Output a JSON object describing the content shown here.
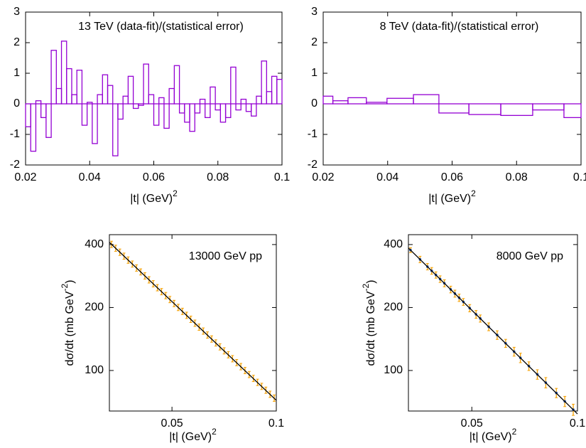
{
  "chart_data": [
    {
      "type": "histogram",
      "title": "13 TeV  (data-fit)/(statistical error)",
      "xlabel": {
        "text": "|t| (GeV)",
        "sup": "2"
      },
      "bins": [
        0.02,
        0.0216,
        0.0232,
        0.0248,
        0.0264,
        0.028,
        0.0296,
        0.0312,
        0.0328,
        0.0344,
        0.036,
        0.0376,
        0.0392,
        0.0408,
        0.0424,
        0.044,
        0.0456,
        0.0472,
        0.0488,
        0.0504,
        0.052,
        0.0536,
        0.0552,
        0.0568,
        0.0584,
        0.06,
        0.0616,
        0.0632,
        0.0648,
        0.0664,
        0.068,
        0.0696,
        0.0712,
        0.0728,
        0.0744,
        0.076,
        0.0776,
        0.0792,
        0.0808,
        0.0824,
        0.084,
        0.0856,
        0.0872,
        0.0888,
        0.0904,
        0.092,
        0.0936,
        0.0952,
        0.0968,
        0.0984,
        0.1
      ],
      "values": [
        -0.75,
        -1.55,
        0.1,
        -0.45,
        -1.1,
        1.75,
        0.5,
        2.05,
        1.15,
        0.3,
        1.1,
        -0.7,
        0.05,
        -1.3,
        0.3,
        0.95,
        0.6,
        -1.7,
        -0.5,
        0.25,
        0.9,
        -0.15,
        -0.05,
        1.3,
        0.3,
        -0.7,
        0.2,
        -0.8,
        0.5,
        1.25,
        -0.3,
        -0.6,
        -0.9,
        -0.3,
        0.15,
        -0.45,
        0.55,
        -0.2,
        -0.6,
        -0.45,
        1.2,
        -0.2,
        0.15,
        -0.25,
        -0.4,
        0.25,
        1.4,
        0.4,
        0.9,
        0.8
      ],
      "color": "#9400d3",
      "xlim": [
        0.02,
        0.1
      ],
      "xticks": [
        0.02,
        0.04,
        0.06,
        0.08,
        0.1
      ],
      "ylim": [
        -2,
        3
      ],
      "yticks": [
        -2,
        -1,
        0,
        1,
        2,
        3
      ]
    },
    {
      "type": "histogram",
      "title": "8 TeV  (data-fit)/(statistical error)",
      "xlabel": {
        "text": "|t| (GeV)",
        "sup": "2"
      },
      "bins": [
        0.02,
        0.023,
        0.0277,
        0.0334,
        0.0398,
        0.048,
        0.0559,
        0.0652,
        0.0751,
        0.085,
        0.0947,
        0.1
      ],
      "values": [
        0.25,
        0.1,
        0.2,
        0.05,
        0.18,
        0.3,
        -0.3,
        -0.35,
        -0.38,
        -0.2,
        -0.45
      ],
      "color": "#9400d3",
      "xlim": [
        0.02,
        0.1
      ],
      "xticks": [
        0.02,
        0.04,
        0.06,
        0.08,
        0.1
      ],
      "ylim": [
        -2,
        3
      ],
      "yticks": [
        -2,
        -1,
        0,
        1,
        2,
        3
      ]
    },
    {
      "type": "errorbar",
      "annotation": "13000 GeV pp",
      "xlabel": {
        "text": "|t| (GeV)",
        "sup": "2"
      },
      "ylabel": {
        "text": "dσ/dt (mb GeV",
        "sup": "-2",
        "end": ")"
      },
      "log_y": true,
      "xlim": [
        0.02,
        0.1
      ],
      "xticks": [
        0.05,
        0.1
      ],
      "ylim": [
        64,
        446
      ],
      "yticks": [
        100,
        200,
        400
      ],
      "series": [
        {
          "kind": "errorbar",
          "color": "#f5a000",
          "marker": false,
          "x": [
            0.021,
            0.023,
            0.025,
            0.027,
            0.029,
            0.031,
            0.033,
            0.035,
            0.037,
            0.039,
            0.041,
            0.043,
            0.045,
            0.047,
            0.049,
            0.051,
            0.053,
            0.055,
            0.057,
            0.059,
            0.061,
            0.063,
            0.065,
            0.067,
            0.069,
            0.071,
            0.073,
            0.075,
            0.077,
            0.079,
            0.081,
            0.083,
            0.085,
            0.087,
            0.089,
            0.091,
            0.093,
            0.095,
            0.097,
            0.099
          ],
          "values": [
            401,
            384.2,
            367.9,
            352.2,
            337.3,
            322.9,
            309.2,
            296.1,
            283.5,
            271.4,
            259.9,
            248.9,
            238.3,
            228.2,
            218.5,
            209.2,
            200.3,
            191.8,
            183.6,
            175.8,
            168.4,
            161.2,
            154.4,
            147.8,
            141.5,
            135.5,
            129.8,
            124.2,
            119,
            113.9,
            109.1,
            104.4,
            100,
            95.7,
            91.7,
            87.8,
            84,
            80.5,
            77,
            73.8
          ],
          "errors": [
            14,
            13,
            13,
            12,
            12,
            11,
            11,
            10,
            10,
            9.5,
            9.1,
            8.7,
            8.3,
            8,
            7.6,
            7.3,
            7,
            6.7,
            6.4,
            6.2,
            5.9,
            5.6,
            5.4,
            5.2,
            5,
            4.7,
            4.5,
            4.3,
            4.2,
            4,
            3.8,
            3.7,
            3.5,
            3.3,
            3.2,
            3.1,
            2.9,
            2.8,
            2.7,
            2.6
          ]
        },
        {
          "kind": "line",
          "color": "#000000",
          "x": [
            0.02,
            0.1
          ],
          "values": [
            410,
            72
          ]
        }
      ]
    },
    {
      "type": "errorbar",
      "annotation": "8000 GeV pp",
      "xlabel": {
        "text": "|t| (GeV)",
        "sup": "2"
      },
      "ylabel": {
        "text": "dσ/dt (mb GeV",
        "sup": "-2",
        "end": ")"
      },
      "log_y": true,
      "xlim": [
        0.02,
        0.1
      ],
      "xticks": [
        0.05,
        0.1
      ],
      "ylim": [
        64,
        446
      ],
      "yticks": [
        100,
        200,
        400
      ],
      "series": [
        {
          "kind": "errorbar",
          "color": "#f5a000",
          "marker": true,
          "marker_color": "#1f4fa0",
          "x": [
            0.021,
            0.0255,
            0.029,
            0.031,
            0.033,
            0.035,
            0.037,
            0.04,
            0.042,
            0.044,
            0.046,
            0.049,
            0.052,
            0.054,
            0.058,
            0.062,
            0.066,
            0.07,
            0.073,
            0.077,
            0.081,
            0.085,
            0.09,
            0.094,
            0.098
          ],
          "values": [
            376.3,
            339.6,
            313.6,
            299.6,
            286.2,
            273.5,
            261.3,
            244,
            233.2,
            222.8,
            212.8,
            198.7,
            185.6,
            177.3,
            161.9,
            147.8,
            134.9,
            123.1,
            115,
            105,
            95.8,
            87.5,
            78.1,
            71.2,
            65
          ],
          "errors": [
            10,
            12,
            11,
            11,
            10,
            10,
            10,
            9,
            9,
            9,
            8,
            8,
            8,
            7,
            7,
            7,
            6,
            6,
            6,
            5,
            5,
            5,
            4,
            4,
            4
          ]
        },
        {
          "kind": "line",
          "color": "#000000",
          "x": [
            0.02,
            0.1
          ],
          "values": [
            385,
            62
          ]
        }
      ]
    }
  ]
}
